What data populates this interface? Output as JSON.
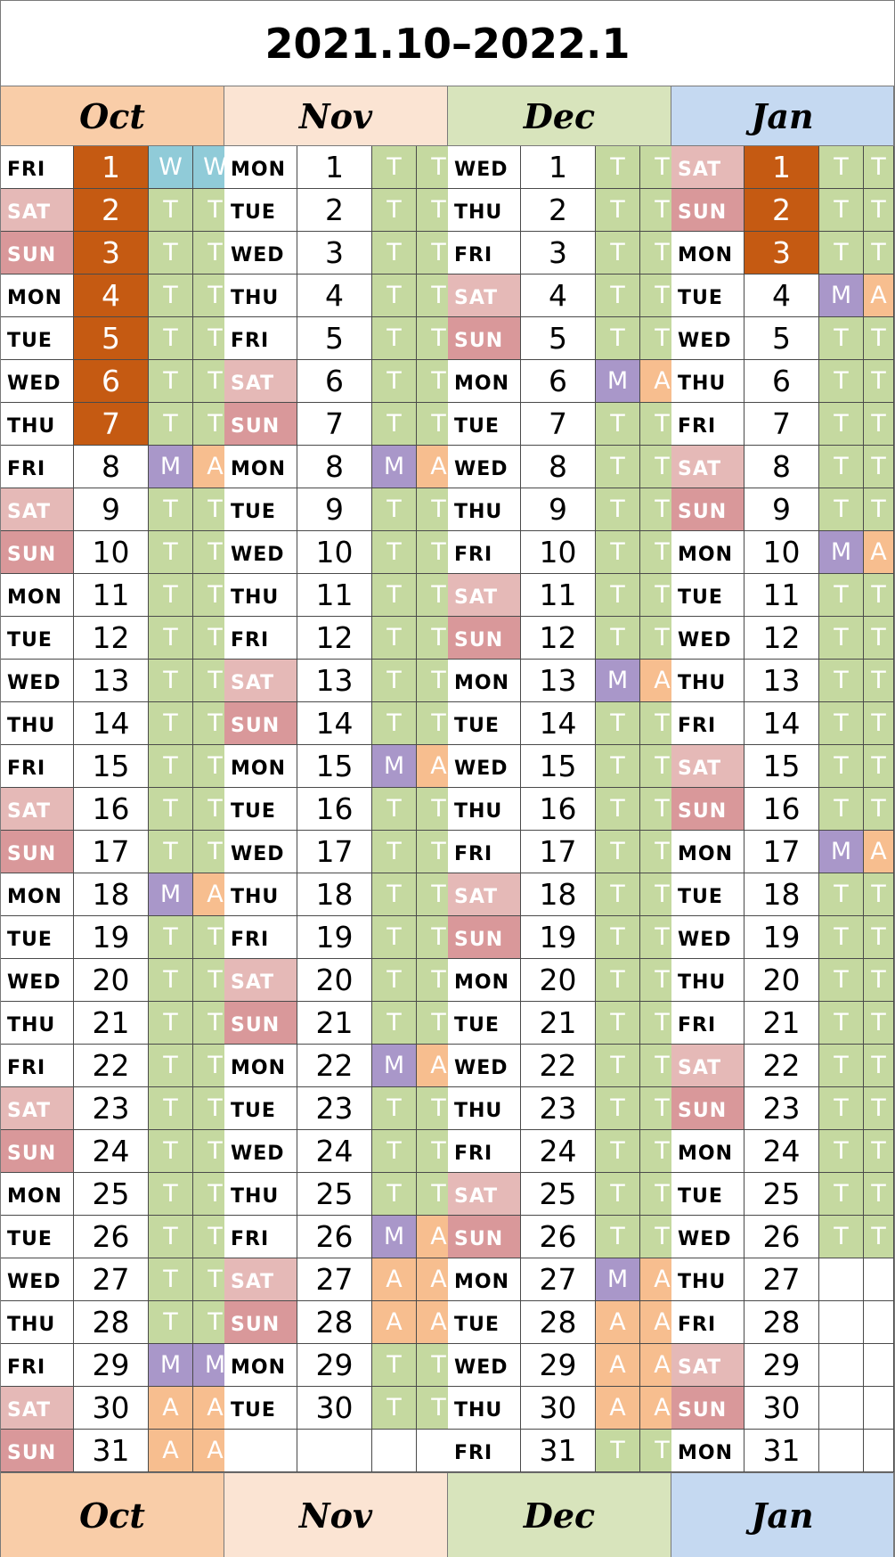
{
  "title": "2021.10–2022.1",
  "colors": {
    "T": "#c5d9a0",
    "M": "#a997c9",
    "A": "#f7be8f",
    "W": "#90cbd8",
    "sat_bg": "#e5b9b7",
    "sun_bg": "#d9989a",
    "holiday_bg": "#c55a12",
    "code_text": "#ffffff"
  },
  "months": [
    {
      "label": "Oct",
      "header_color": "#f9cda8",
      "days": [
        {
          "dow": "FRI",
          "day": "1",
          "a": "W",
          "b": "W",
          "holiday": true
        },
        {
          "dow": "SAT",
          "day": "2",
          "a": "T",
          "b": "T",
          "holiday": true
        },
        {
          "dow": "SUN",
          "day": "3",
          "a": "T",
          "b": "T",
          "holiday": true
        },
        {
          "dow": "MON",
          "day": "4",
          "a": "T",
          "b": "T",
          "holiday": true
        },
        {
          "dow": "TUE",
          "day": "5",
          "a": "T",
          "b": "T",
          "holiday": true
        },
        {
          "dow": "WED",
          "day": "6",
          "a": "T",
          "b": "T",
          "holiday": true
        },
        {
          "dow": "THU",
          "day": "7",
          "a": "T",
          "b": "T",
          "holiday": true
        },
        {
          "dow": "FRI",
          "day": "8",
          "a": "M",
          "b": "A"
        },
        {
          "dow": "SAT",
          "day": "9",
          "a": "T",
          "b": "T"
        },
        {
          "dow": "SUN",
          "day": "10",
          "a": "T",
          "b": "T"
        },
        {
          "dow": "MON",
          "day": "11",
          "a": "T",
          "b": "T"
        },
        {
          "dow": "TUE",
          "day": "12",
          "a": "T",
          "b": "T"
        },
        {
          "dow": "WED",
          "day": "13",
          "a": "T",
          "b": "T"
        },
        {
          "dow": "THU",
          "day": "14",
          "a": "T",
          "b": "T"
        },
        {
          "dow": "FRI",
          "day": "15",
          "a": "T",
          "b": "T"
        },
        {
          "dow": "SAT",
          "day": "16",
          "a": "T",
          "b": "T"
        },
        {
          "dow": "SUN",
          "day": "17",
          "a": "T",
          "b": "T"
        },
        {
          "dow": "MON",
          "day": "18",
          "a": "M",
          "b": "A"
        },
        {
          "dow": "TUE",
          "day": "19",
          "a": "T",
          "b": "T"
        },
        {
          "dow": "WED",
          "day": "20",
          "a": "T",
          "b": "T"
        },
        {
          "dow": "THU",
          "day": "21",
          "a": "T",
          "b": "T"
        },
        {
          "dow": "FRI",
          "day": "22",
          "a": "T",
          "b": "T"
        },
        {
          "dow": "SAT",
          "day": "23",
          "a": "T",
          "b": "T"
        },
        {
          "dow": "SUN",
          "day": "24",
          "a": "T",
          "b": "T"
        },
        {
          "dow": "MON",
          "day": "25",
          "a": "T",
          "b": "T"
        },
        {
          "dow": "TUE",
          "day": "26",
          "a": "T",
          "b": "T"
        },
        {
          "dow": "WED",
          "day": "27",
          "a": "T",
          "b": "T"
        },
        {
          "dow": "THU",
          "day": "28",
          "a": "T",
          "b": "T"
        },
        {
          "dow": "FRI",
          "day": "29",
          "a": "M",
          "b": "M"
        },
        {
          "dow": "SAT",
          "day": "30",
          "a": "A",
          "b": "A"
        },
        {
          "dow": "SUN",
          "day": "31",
          "a": "A",
          "b": "A"
        }
      ]
    },
    {
      "label": "Nov",
      "header_color": "#fbe4d3",
      "days": [
        {
          "dow": "MON",
          "day": "1",
          "a": "T",
          "b": "T"
        },
        {
          "dow": "TUE",
          "day": "2",
          "a": "T",
          "b": "T"
        },
        {
          "dow": "WED",
          "day": "3",
          "a": "T",
          "b": "T"
        },
        {
          "dow": "THU",
          "day": "4",
          "a": "T",
          "b": "T"
        },
        {
          "dow": "FRI",
          "day": "5",
          "a": "T",
          "b": "T"
        },
        {
          "dow": "SAT",
          "day": "6",
          "a": "T",
          "b": "T"
        },
        {
          "dow": "SUN",
          "day": "7",
          "a": "T",
          "b": "T"
        },
        {
          "dow": "MON",
          "day": "8",
          "a": "M",
          "b": "A"
        },
        {
          "dow": "TUE",
          "day": "9",
          "a": "T",
          "b": "T"
        },
        {
          "dow": "WED",
          "day": "10",
          "a": "T",
          "b": "T"
        },
        {
          "dow": "THU",
          "day": "11",
          "a": "T",
          "b": "T"
        },
        {
          "dow": "FRI",
          "day": "12",
          "a": "T",
          "b": "T"
        },
        {
          "dow": "SAT",
          "day": "13",
          "a": "T",
          "b": "T"
        },
        {
          "dow": "SUN",
          "day": "14",
          "a": "T",
          "b": "T"
        },
        {
          "dow": "MON",
          "day": "15",
          "a": "M",
          "b": "A"
        },
        {
          "dow": "TUE",
          "day": "16",
          "a": "T",
          "b": "T"
        },
        {
          "dow": "WED",
          "day": "17",
          "a": "T",
          "b": "T"
        },
        {
          "dow": "THU",
          "day": "18",
          "a": "T",
          "b": "T"
        },
        {
          "dow": "FRI",
          "day": "19",
          "a": "T",
          "b": "T"
        },
        {
          "dow": "SAT",
          "day": "20",
          "a": "T",
          "b": "T"
        },
        {
          "dow": "SUN",
          "day": "21",
          "a": "T",
          "b": "T"
        },
        {
          "dow": "MON",
          "day": "22",
          "a": "M",
          "b": "A"
        },
        {
          "dow": "TUE",
          "day": "23",
          "a": "T",
          "b": "T"
        },
        {
          "dow": "WED",
          "day": "24",
          "a": "T",
          "b": "T"
        },
        {
          "dow": "THU",
          "day": "25",
          "a": "T",
          "b": "T"
        },
        {
          "dow": "FRI",
          "day": "26",
          "a": "M",
          "b": "A"
        },
        {
          "dow": "SAT",
          "day": "27",
          "a": "A",
          "b": "A"
        },
        {
          "dow": "SUN",
          "day": "28",
          "a": "A",
          "b": "A"
        },
        {
          "dow": "MON",
          "day": "29",
          "a": "T",
          "b": "T"
        },
        {
          "dow": "TUE",
          "day": "30",
          "a": "T",
          "b": "T"
        },
        {
          "dow": "",
          "day": "",
          "a": "",
          "b": ""
        }
      ]
    },
    {
      "label": "Dec",
      "header_color": "#d8e4bc",
      "days": [
        {
          "dow": "WED",
          "day": "1",
          "a": "T",
          "b": "T"
        },
        {
          "dow": "THU",
          "day": "2",
          "a": "T",
          "b": "T"
        },
        {
          "dow": "FRI",
          "day": "3",
          "a": "T",
          "b": "T"
        },
        {
          "dow": "SAT",
          "day": "4",
          "a": "T",
          "b": "T"
        },
        {
          "dow": "SUN",
          "day": "5",
          "a": "T",
          "b": "T"
        },
        {
          "dow": "MON",
          "day": "6",
          "a": "M",
          "b": "A"
        },
        {
          "dow": "TUE",
          "day": "7",
          "a": "T",
          "b": "T"
        },
        {
          "dow": "WED",
          "day": "8",
          "a": "T",
          "b": "T"
        },
        {
          "dow": "THU",
          "day": "9",
          "a": "T",
          "b": "T"
        },
        {
          "dow": "FRI",
          "day": "10",
          "a": "T",
          "b": "T"
        },
        {
          "dow": "SAT",
          "day": "11",
          "a": "T",
          "b": "T"
        },
        {
          "dow": "SUN",
          "day": "12",
          "a": "T",
          "b": "T"
        },
        {
          "dow": "MON",
          "day": "13",
          "a": "M",
          "b": "A"
        },
        {
          "dow": "TUE",
          "day": "14",
          "a": "T",
          "b": "T"
        },
        {
          "dow": "WED",
          "day": "15",
          "a": "T",
          "b": "T"
        },
        {
          "dow": "THU",
          "day": "16",
          "a": "T",
          "b": "T"
        },
        {
          "dow": "FRI",
          "day": "17",
          "a": "T",
          "b": "T"
        },
        {
          "dow": "SAT",
          "day": "18",
          "a": "T",
          "b": "T"
        },
        {
          "dow": "SUN",
          "day": "19",
          "a": "T",
          "b": "T"
        },
        {
          "dow": "MON",
          "day": "20",
          "a": "T",
          "b": "T"
        },
        {
          "dow": "TUE",
          "day": "21",
          "a": "T",
          "b": "T"
        },
        {
          "dow": "WED",
          "day": "22",
          "a": "T",
          "b": "T"
        },
        {
          "dow": "THU",
          "day": "23",
          "a": "T",
          "b": "T"
        },
        {
          "dow": "FRI",
          "day": "24",
          "a": "T",
          "b": "T"
        },
        {
          "dow": "SAT",
          "day": "25",
          "a": "T",
          "b": "T"
        },
        {
          "dow": "SUN",
          "day": "26",
          "a": "T",
          "b": "T"
        },
        {
          "dow": "MON",
          "day": "27",
          "a": "M",
          "b": "A"
        },
        {
          "dow": "TUE",
          "day": "28",
          "a": "A",
          "b": "A"
        },
        {
          "dow": "WED",
          "day": "29",
          "a": "A",
          "b": "A"
        },
        {
          "dow": "THU",
          "day": "30",
          "a": "A",
          "b": "A"
        },
        {
          "dow": "FRI",
          "day": "31",
          "a": "T",
          "b": "T"
        }
      ]
    },
    {
      "label": "Jan",
      "header_color": "#c5d9f1",
      "days": [
        {
          "dow": "SAT",
          "day": "1",
          "a": "T",
          "b": "T",
          "holiday": true
        },
        {
          "dow": "SUN",
          "day": "2",
          "a": "T",
          "b": "T",
          "holiday": true
        },
        {
          "dow": "MON",
          "day": "3",
          "a": "T",
          "b": "T",
          "holiday": true
        },
        {
          "dow": "TUE",
          "day": "4",
          "a": "M",
          "b": "A"
        },
        {
          "dow": "WED",
          "day": "5",
          "a": "T",
          "b": "T"
        },
        {
          "dow": "THU",
          "day": "6",
          "a": "T",
          "b": "T"
        },
        {
          "dow": "FRI",
          "day": "7",
          "a": "T",
          "b": "T"
        },
        {
          "dow": "SAT",
          "day": "8",
          "a": "T",
          "b": "T"
        },
        {
          "dow": "SUN",
          "day": "9",
          "a": "T",
          "b": "T"
        },
        {
          "dow": "MON",
          "day": "10",
          "a": "M",
          "b": "A"
        },
        {
          "dow": "TUE",
          "day": "11",
          "a": "T",
          "b": "T"
        },
        {
          "dow": "WED",
          "day": "12",
          "a": "T",
          "b": "T"
        },
        {
          "dow": "THU",
          "day": "13",
          "a": "T",
          "b": "T"
        },
        {
          "dow": "FRI",
          "day": "14",
          "a": "T",
          "b": "T"
        },
        {
          "dow": "SAT",
          "day": "15",
          "a": "T",
          "b": "T"
        },
        {
          "dow": "SUN",
          "day": "16",
          "a": "T",
          "b": "T"
        },
        {
          "dow": "MON",
          "day": "17",
          "a": "M",
          "b": "A"
        },
        {
          "dow": "TUE",
          "day": "18",
          "a": "T",
          "b": "T"
        },
        {
          "dow": "WED",
          "day": "19",
          "a": "T",
          "b": "T"
        },
        {
          "dow": "THU",
          "day": "20",
          "a": "T",
          "b": "T"
        },
        {
          "dow": "FRI",
          "day": "21",
          "a": "T",
          "b": "T"
        },
        {
          "dow": "SAT",
          "day": "22",
          "a": "T",
          "b": "T"
        },
        {
          "dow": "SUN",
          "day": "23",
          "a": "T",
          "b": "T"
        },
        {
          "dow": "MON",
          "day": "24",
          "a": "T",
          "b": "T"
        },
        {
          "dow": "TUE",
          "day": "25",
          "a": "T",
          "b": "T"
        },
        {
          "dow": "WED",
          "day": "26",
          "a": "T",
          "b": "T"
        },
        {
          "dow": "THU",
          "day": "27",
          "a": "",
          "b": ""
        },
        {
          "dow": "FRI",
          "day": "28",
          "a": "",
          "b": ""
        },
        {
          "dow": "SAT",
          "day": "29",
          "a": "",
          "b": ""
        },
        {
          "dow": "SUN",
          "day": "30",
          "a": "",
          "b": ""
        },
        {
          "dow": "MON",
          "day": "31",
          "a": "",
          "b": ""
        }
      ]
    }
  ]
}
